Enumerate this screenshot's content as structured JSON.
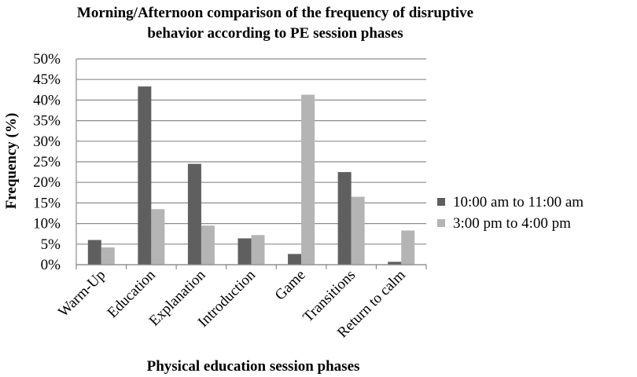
{
  "chart_data": {
    "type": "bar",
    "title_line1": "Morning/Afternoon comparison of the frequency of disruptive",
    "title_line2": "behavior according to PE session phases",
    "xlabel": "Physical education session phases",
    "ylabel": "Frequency (%)",
    "ylim": [
      0,
      50
    ],
    "yticks": [
      "0%",
      "5%",
      "10%",
      "15%",
      "20%",
      "25%",
      "30%",
      "35%",
      "40%",
      "45%",
      "50%"
    ],
    "grid": true,
    "legend_position": "right",
    "categories": [
      "Warm-Up",
      "Education",
      "Explanation",
      "Introduction",
      "Game",
      "Transitions",
      "Return to calm"
    ],
    "series": [
      {
        "name": "10:00 am to 11:00 am",
        "color": "#5f5f5f",
        "values": [
          6,
          43.3,
          24.5,
          6.4,
          2.6,
          22.5,
          0.7
        ]
      },
      {
        "name": "3:00 pm to 4:00 pm",
        "color": "#b4b4b4",
        "values": [
          4.2,
          13.5,
          9.5,
          7.2,
          41.3,
          16.5,
          8.3
        ]
      }
    ]
  }
}
